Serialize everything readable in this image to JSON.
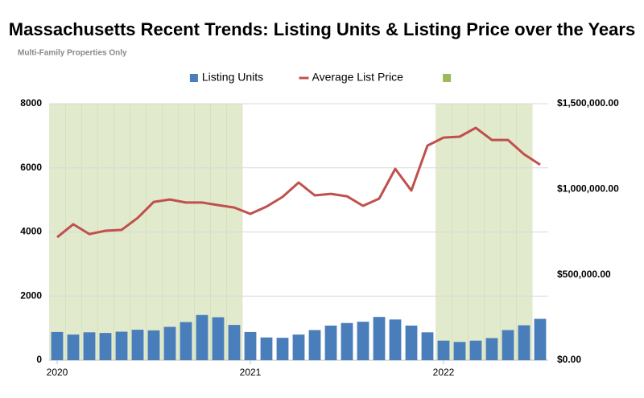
{
  "chart_data": {
    "type": "bar-line",
    "title": "Massachusetts Recent Trends: Listing Units & Listing Price over the Years",
    "subtitle": "Multi-Family Properties Only",
    "categories": [
      "2020",
      null,
      null,
      null,
      null,
      null,
      null,
      null,
      null,
      null,
      null,
      null,
      "2021",
      null,
      null,
      null,
      null,
      null,
      null,
      null,
      null,
      null,
      null,
      null,
      "2022",
      null,
      null,
      null,
      null,
      null,
      null
    ],
    "series": [
      {
        "name": "Listing Units",
        "color": "#4a7ebb",
        "type": "bar",
        "values": [
          880,
          800,
          870,
          850,
          890,
          950,
          930,
          1040,
          1190,
          1410,
          1340,
          1100,
          880,
          710,
          700,
          800,
          940,
          1080,
          1160,
          1200,
          1350,
          1270,
          1080,
          870,
          610,
          570,
          610,
          690,
          940,
          1090,
          1290
        ]
      },
      {
        "name": "Average List Price",
        "color": "#c0504d",
        "type": "line",
        "axis": "y2",
        "values": [
          719000,
          795000,
          738000,
          757000,
          762000,
          832000,
          926000,
          940000,
          922000,
          922000,
          907000,
          893000,
          856000,
          898000,
          955000,
          1039000,
          964000,
          973000,
          959000,
          903000,
          945000,
          1119000,
          992000,
          1255000,
          1302000,
          1307000,
          1359000,
          1288000,
          1288000,
          1204000,
          1143000
        ]
      },
      {
        "color": "#9bbb59",
        "type": "area-band",
        "values": [
          8000,
          8000,
          8000,
          8000,
          8000,
          8000,
          8000,
          8000,
          8000,
          8000,
          8000,
          8000,
          null,
          null,
          null,
          null,
          null,
          null,
          null,
          null,
          null,
          null,
          null,
          null,
          8000,
          8000,
          8000,
          8000,
          8000,
          8000,
          null
        ]
      }
    ],
    "ylim": [
      0,
      8000
    ],
    "yticks": [
      0,
      2000,
      4000,
      6000,
      8000
    ],
    "y2lim": [
      0,
      1500000
    ],
    "y2ticks": [
      {
        "value": 0,
        "label": "$0.00"
      },
      {
        "value": 500000,
        "label": "$500,000.00"
      },
      {
        "value": 1000000,
        "label": "$1,000,000.00"
      },
      {
        "value": 1500000,
        "label": "$1,500,000.00"
      }
    ],
    "grid": true,
    "legend": "top"
  }
}
